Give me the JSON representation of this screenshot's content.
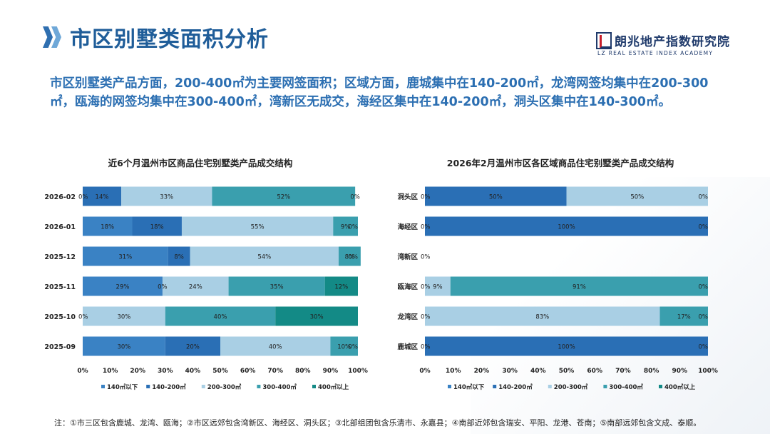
{
  "page": {
    "title": "市区别墅类面积分析",
    "logo_cn": "朗兆地产指数研究院",
    "logo_en": "LZ REAL ESTATE INDEX ACADEMY",
    "summary": "市区别墅类产品方面，200-400㎡为主要网签面积；区域方面，鹿城集中在140-200㎡，龙湾网签均集中在200-300㎡，瓯海的网签均集中在300-400㎡，湾新区无成交，海经区集中在140-200㎡，洞头区集中在140-300㎡。",
    "footnote": "注：①市三区包含鹿城、龙湾、瓯海；②市区远郊包含湾新区、海经区、洞头区；③北部组团包含乐清市、永嘉县；④南部近郊包含瑞安、平阳、龙港、苍南；⑤南部远郊包含文成、泰顺。",
    "colors": {
      "title": "#1f5d99",
      "accent": "#2c6fb2"
    }
  },
  "chart_data": [
    {
      "type": "bar",
      "orientation": "horizontal-stacked-100",
      "title": "近6个月温州市区商品住宅别墅类产品成交结构",
      "categories": [
        "2026-02",
        "2026-01",
        "2025-12",
        "2025-11",
        "2025-10",
        "2025-09"
      ],
      "series": [
        {
          "name": "140㎡以下",
          "color": "#3a82c4",
          "values": [
            0,
            18,
            31,
            29,
            0,
            30
          ]
        },
        {
          "name": "140-200㎡",
          "color": "#2a6fb5",
          "values": [
            14,
            18,
            8,
            0,
            0,
            20
          ]
        },
        {
          "name": "200-300㎡",
          "color": "#a9cfe4",
          "values": [
            33,
            55,
            54,
            24,
            30,
            40
          ]
        },
        {
          "name": "300-400㎡",
          "color": "#3a9fae",
          "values": [
            52,
            9,
            8,
            35,
            40,
            10
          ]
        },
        {
          "name": "400㎡以上",
          "color": "#138a86",
          "values": [
            0,
            0,
            0,
            12,
            30,
            0
          ]
        }
      ],
      "labels": [
        [
          "0%",
          "14%",
          "33%",
          "52%",
          "0%"
        ],
        [
          "18%",
          "18%",
          "55%",
          "9%",
          "0%"
        ],
        [
          "31%",
          "8%",
          "54%",
          "8%",
          "0%"
        ],
        [
          "29%",
          "0%",
          "24%",
          "35%",
          "12%"
        ],
        [
          "0%",
          "30%",
          "40%",
          "30%"
        ],
        [
          "30%",
          "20%",
          "40%",
          "10%",
          "0%"
        ]
      ],
      "xticks": [
        "0%",
        "10%",
        "20%",
        "30%",
        "40%",
        "50%",
        "60%",
        "70%",
        "80%",
        "90%",
        "100%"
      ],
      "xlim": [
        0,
        100
      ]
    },
    {
      "type": "bar",
      "orientation": "horizontal-stacked-100",
      "title": "2026年2月温州市区各区域商品住宅别墅类产品成交结构",
      "categories": [
        "洞头区",
        "海经区",
        "湾新区",
        "瓯海区",
        "龙湾区",
        "鹿城区"
      ],
      "series": [
        {
          "name": "140㎡以下",
          "color": "#3a82c4",
          "values": [
            0,
            0,
            0,
            0,
            0,
            0
          ]
        },
        {
          "name": "140-200㎡",
          "color": "#2a6fb5",
          "values": [
            50,
            100,
            0,
            0,
            0,
            100
          ]
        },
        {
          "name": "200-300㎡",
          "color": "#a9cfe4",
          "values": [
            50,
            0,
            0,
            9,
            83,
            0
          ]
        },
        {
          "name": "300-400㎡",
          "color": "#3a9fae",
          "values": [
            0,
            0,
            0,
            91,
            17,
            0
          ]
        },
        {
          "name": "400㎡以上",
          "color": "#138a86",
          "values": [
            0,
            0,
            0,
            0,
            0,
            0
          ]
        }
      ],
      "labels": [
        [
          "0%",
          "50%",
          "50%",
          "0%"
        ],
        [
          "0%",
          "100%",
          "0%"
        ],
        [
          "0%"
        ],
        [
          "0%",
          "9%",
          "91%",
          "0%"
        ],
        [
          "0%",
          "83%",
          "17%",
          "0%"
        ],
        [
          "0%",
          "100%",
          "0%"
        ]
      ],
      "xticks": [
        "0%",
        "10%",
        "20%",
        "30%",
        "40%",
        "50%",
        "60%",
        "70%",
        "80%",
        "90%",
        "100%"
      ],
      "xlim": [
        0,
        100
      ]
    }
  ]
}
